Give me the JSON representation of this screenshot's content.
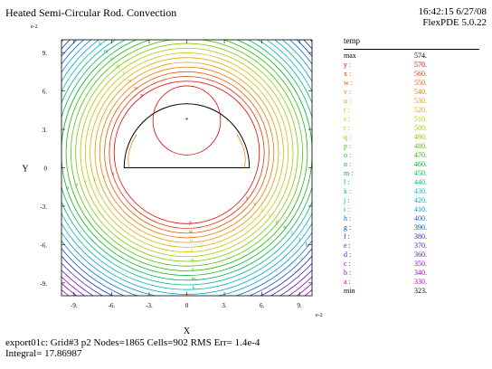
{
  "header": {
    "title": "Heated Semi-Circular Rod. Convection",
    "time_date": "16:42:15 6/27/08",
    "software": "FlexPDE 5.0.22"
  },
  "footer": {
    "line1": "export01c:  Grid#3  p2  Nodes=1865 Cells=902 RMS Err= 1.4e-4",
    "line2": "Integral=  17.86987"
  },
  "colors": {
    "domain_boundary": "#000000",
    "palette_note": "rainbow: magenta (low) -> blue -> cyan -> green -> yellow -> orange -> red (high)"
  },
  "chart_data": {
    "type": "contour",
    "title": "Heated Semi-Circular Rod. Convection",
    "xlabel": "X",
    "ylabel": "Y",
    "x_exponent_label": "e-2",
    "y_exponent_label": "e-2",
    "xlim": [
      -10,
      10
    ],
    "ylim": [
      -10,
      10
    ],
    "x_ticks": [
      "-9.",
      "-6.",
      "-3.",
      "0",
      "3.",
      "6.",
      "9."
    ],
    "y_ticks": [
      "9.",
      "6.",
      "3.",
      "0",
      "-3.",
      "-6.",
      "-9."
    ],
    "x_tick_values": [
      -9,
      -6,
      -3,
      0,
      3,
      6,
      9
    ],
    "y_tick_values": [
      9,
      6,
      3,
      0,
      -3,
      -6,
      -9
    ],
    "rod": {
      "center": [
        0,
        0
      ],
      "radius": 5,
      "shape": "upper semicircle"
    },
    "inner_circle": {
      "center": [
        0,
        3.7
      ],
      "radius": 2.7
    },
    "center_marker": [
      0,
      3.7
    ],
    "variable": "temp",
    "max": "574.",
    "min": "323.",
    "levels": [
      {
        "label": "y",
        "value": "570.",
        "color": "#e60000"
      },
      {
        "label": "x",
        "value": "560.",
        "color": "#e83000"
      },
      {
        "label": "w",
        "value": "550.",
        "color": "#e85800"
      },
      {
        "label": "v",
        "value": "540.",
        "color": "#e87800"
      },
      {
        "label": "u",
        "value": "530.",
        "color": "#e09a00"
      },
      {
        "label": "t",
        "value": "520.",
        "color": "#d4b400"
      },
      {
        "label": "s",
        "value": "510.",
        "color": "#c4c400"
      },
      {
        "label": "r",
        "value": "500.",
        "color": "#a8c800"
      },
      {
        "label": "q",
        "value": "490.",
        "color": "#80c800"
      },
      {
        "label": "p",
        "value": "480.",
        "color": "#50c000"
      },
      {
        "label": "o",
        "value": "470.",
        "color": "#20b800"
      },
      {
        "label": "n",
        "value": "460.",
        "color": "#00b020"
      },
      {
        "label": "m",
        "value": "450.",
        "color": "#00b460"
      },
      {
        "label": "l",
        "value": "440.",
        "color": "#00b890"
      },
      {
        "label": "k",
        "value": "430.",
        "color": "#00b8b8"
      },
      {
        "label": "j",
        "value": "420.",
        "color": "#00a8c8"
      },
      {
        "label": "i",
        "value": "410.",
        "color": "#0090d0"
      },
      {
        "label": "h",
        "value": "400.",
        "color": "#0070d0"
      },
      {
        "label": "g",
        "value": "390.",
        "color": "#0050c8"
      },
      {
        "label": "f",
        "value": "380.",
        "color": "#2030c0"
      },
      {
        "label": "e",
        "value": "370.",
        "color": "#4020c0"
      },
      {
        "label": "d",
        "value": "360.",
        "color": "#6018c0"
      },
      {
        "label": "c",
        "value": "350.",
        "color": "#8010c0"
      },
      {
        "label": "b",
        "value": "340.",
        "color": "#a000c0"
      },
      {
        "label": "a",
        "value": "330.",
        "color": "#c000c0"
      }
    ]
  }
}
